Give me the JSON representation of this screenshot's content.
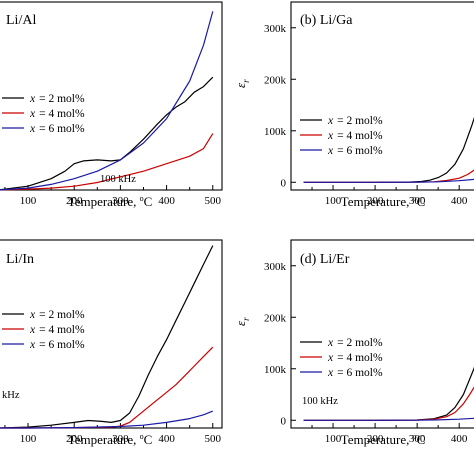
{
  "chart_data": [
    {
      "type": "line",
      "panel_label": "Li/Al",
      "xlabel": "Temperature, °C",
      "ylabel": "",
      "x_ticks": [
        "100",
        "200",
        "300",
        "400",
        "500"
      ],
      "y_ticks": [],
      "xlim": [
        35,
        520
      ],
      "ylim": [
        0,
        1
      ],
      "legend": {
        "position": "middle-left",
        "var": "x",
        "entries": [
          "= 2 mol%",
          "= 4 mol%",
          "= 6 mol%"
        ]
      },
      "annotation": "100 kHz",
      "colors": [
        "#000000",
        "#cc0000",
        "#1a1aa6"
      ],
      "series": [
        {
          "x": [
            35,
            100,
            150,
            180,
            200,
            220,
            250,
            280,
            300,
            320,
            350,
            380,
            400,
            420,
            440,
            460,
            480,
            500
          ],
          "y": [
            0.0,
            0.02,
            0.06,
            0.1,
            0.14,
            0.155,
            0.16,
            0.155,
            0.16,
            0.2,
            0.27,
            0.35,
            0.4,
            0.44,
            0.47,
            0.52,
            0.55,
            0.6
          ]
        },
        {
          "x": [
            35,
            100,
            150,
            200,
            250,
            300,
            350,
            400,
            450,
            480,
            500
          ],
          "y": [
            0.0,
            0.005,
            0.01,
            0.02,
            0.04,
            0.07,
            0.1,
            0.14,
            0.18,
            0.22,
            0.3
          ]
        },
        {
          "x": [
            35,
            100,
            150,
            200,
            250,
            300,
            350,
            400,
            450,
            480,
            500
          ],
          "y": [
            0.0,
            0.01,
            0.03,
            0.06,
            0.1,
            0.16,
            0.25,
            0.38,
            0.58,
            0.77,
            0.95
          ]
        }
      ]
    },
    {
      "type": "line",
      "panel_label": "(b) Li/Ga",
      "xlabel": "Temperature, °C",
      "ylabel": "ε_r",
      "x_ticks": [
        "100",
        "200",
        "300",
        "400"
      ],
      "y_ticks": [
        "0",
        "100k",
        "200k",
        "300k"
      ],
      "xlim": [
        0,
        440
      ],
      "ylim": [
        -15000,
        350000
      ],
      "legend": {
        "position": "middle-left",
        "var": "x",
        "entries": [
          "= 2 mol%",
          "= 4 mol%",
          "= 6 mol%"
        ]
      },
      "annotation": "",
      "colors": [
        "#000000",
        "#cc0000",
        "#1a1aa6"
      ],
      "series": [
        {
          "x": [
            30,
            100,
            200,
            280,
            310,
            330,
            350,
            370,
            390,
            410,
            430,
            440
          ],
          "y": [
            0,
            0,
            0,
            300,
            1500,
            4000,
            9000,
            18000,
            35000,
            65000,
            110000,
            135000
          ]
        },
        {
          "x": [
            30,
            100,
            200,
            300,
            340,
            370,
            400,
            420,
            440
          ],
          "y": [
            0,
            0,
            0,
            200,
            1000,
            3500,
            8000,
            15000,
            26000
          ]
        },
        {
          "x": [
            30,
            100,
            200,
            300,
            350,
            400,
            440
          ],
          "y": [
            0,
            0,
            0,
            300,
            900,
            3000,
            6000
          ]
        }
      ]
    },
    {
      "type": "line",
      "panel_label": "Li/In",
      "xlabel": "Temperature, °C",
      "ylabel": "",
      "x_ticks": [
        "100",
        "200",
        "300",
        "400",
        "500"
      ],
      "y_ticks": [],
      "xlim": [
        35,
        520
      ],
      "ylim": [
        0,
        1
      ],
      "legend": {
        "position": "middle-left",
        "var": "x",
        "entries": [
          "= 2 mol%",
          "= 4 mol%",
          "= 6 mol%"
        ]
      },
      "annotation": "kHz",
      "colors": [
        "#000000",
        "#cc0000",
        "#1a1aa6"
      ],
      "series": [
        {
          "x": [
            35,
            100,
            150,
            200,
            230,
            260,
            280,
            300,
            320,
            340,
            360,
            380,
            400,
            420,
            440,
            460,
            480,
            500
          ],
          "y": [
            0.0,
            0.005,
            0.015,
            0.03,
            0.04,
            0.035,
            0.03,
            0.04,
            0.08,
            0.17,
            0.28,
            0.38,
            0.47,
            0.57,
            0.67,
            0.77,
            0.87,
            0.97
          ]
        },
        {
          "x": [
            35,
            100,
            200,
            280,
            300,
            320,
            340,
            360,
            380,
            400,
            420,
            440,
            460,
            480,
            500
          ],
          "y": [
            0.0,
            0.0,
            0.002,
            0.005,
            0.01,
            0.03,
            0.07,
            0.11,
            0.15,
            0.19,
            0.23,
            0.28,
            0.33,
            0.38,
            0.43
          ]
        },
        {
          "x": [
            35,
            100,
            200,
            300,
            350,
            400,
            450,
            480,
            500
          ],
          "y": [
            0.0,
            0.0,
            0.002,
            0.008,
            0.015,
            0.03,
            0.05,
            0.07,
            0.09
          ]
        }
      ]
    },
    {
      "type": "line",
      "panel_label": "(d) Li/Er",
      "xlabel": "Temperature, °C",
      "ylabel": "ε_r",
      "x_ticks": [
        "100",
        "200",
        "300",
        "400"
      ],
      "y_ticks": [
        "0",
        "100k",
        "200k",
        "300k"
      ],
      "xlim": [
        0,
        440
      ],
      "ylim": [
        -15000,
        350000
      ],
      "legend": {
        "position": "middle-left",
        "var": "x",
        "entries": [
          "= 2 mol%",
          "= 4 mol%",
          "= 6 mol%"
        ]
      },
      "annotation": "100 kHz",
      "colors": [
        "#000000",
        "#cc0000",
        "#1a1aa6"
      ],
      "series": [
        {
          "x": [
            30,
            100,
            200,
            300,
            340,
            370,
            390,
            410,
            425,
            440
          ],
          "y": [
            0,
            0,
            0,
            500,
            3000,
            10000,
            25000,
            50000,
            80000,
            110000
          ]
        },
        {
          "x": [
            30,
            100,
            200,
            300,
            340,
            370,
            390,
            410,
            425,
            440
          ],
          "y": [
            0,
            0,
            0,
            400,
            2000,
            7000,
            15000,
            32000,
            50000,
            70000
          ]
        },
        {
          "x": [
            30,
            100,
            200,
            300,
            350,
            400,
            440
          ],
          "y": [
            0,
            0,
            0,
            200,
            800,
            2000,
            4000
          ]
        }
      ]
    }
  ]
}
